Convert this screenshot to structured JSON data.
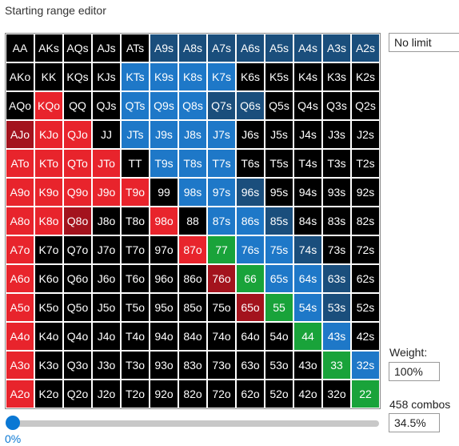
{
  "title": "Starting range editor",
  "limit_select": {
    "value": "No limit"
  },
  "weight": {
    "label": "Weight:",
    "value": "100%"
  },
  "combos": {
    "label": "458 combos",
    "percent": "34.5%"
  },
  "slider": {
    "value_label": "0%",
    "value": 0
  },
  "colors": {
    "black": "#000000",
    "blue": "#1e78c8",
    "navy": "#1a4e7c",
    "red": "#e8242c",
    "darkred": "#a3131d",
    "green": "#19a33a"
  },
  "grid": [
    [
      [
        "AA",
        "black"
      ],
      [
        "AKs",
        "black"
      ],
      [
        "AQs",
        "black"
      ],
      [
        "AJs",
        "black"
      ],
      [
        "ATs",
        "black"
      ],
      [
        "A9s",
        "navy"
      ],
      [
        "A8s",
        "navy"
      ],
      [
        "A7s",
        "navy"
      ],
      [
        "A6s",
        "navy"
      ],
      [
        "A5s",
        "navy"
      ],
      [
        "A4s",
        "navy"
      ],
      [
        "A3s",
        "navy"
      ],
      [
        "A2s",
        "navy"
      ]
    ],
    [
      [
        "AKo",
        "black"
      ],
      [
        "KK",
        "black"
      ],
      [
        "KQs",
        "black"
      ],
      [
        "KJs",
        "black"
      ],
      [
        "KTs",
        "blue"
      ],
      [
        "K9s",
        "blue"
      ],
      [
        "K8s",
        "blue"
      ],
      [
        "K7s",
        "blue"
      ],
      [
        "K6s",
        "black"
      ],
      [
        "K5s",
        "black"
      ],
      [
        "K4s",
        "black"
      ],
      [
        "K3s",
        "black"
      ],
      [
        "K2s",
        "black"
      ]
    ],
    [
      [
        "AQo",
        "black"
      ],
      [
        "KQo",
        "red"
      ],
      [
        "QQ",
        "black"
      ],
      [
        "QJs",
        "black"
      ],
      [
        "QTs",
        "blue"
      ],
      [
        "Q9s",
        "blue"
      ],
      [
        "Q8s",
        "blue"
      ],
      [
        "Q7s",
        "navy"
      ],
      [
        "Q6s",
        "navy"
      ],
      [
        "Q5s",
        "black"
      ],
      [
        "Q4s",
        "black"
      ],
      [
        "Q3s",
        "black"
      ],
      [
        "Q2s",
        "black"
      ]
    ],
    [
      [
        "AJo",
        "darkred"
      ],
      [
        "KJo",
        "red"
      ],
      [
        "QJo",
        "red"
      ],
      [
        "JJ",
        "black"
      ],
      [
        "JTs",
        "blue"
      ],
      [
        "J9s",
        "blue"
      ],
      [
        "J8s",
        "blue"
      ],
      [
        "J7s",
        "blue"
      ],
      [
        "J6s",
        "black"
      ],
      [
        "J5s",
        "black"
      ],
      [
        "J4s",
        "black"
      ],
      [
        "J3s",
        "black"
      ],
      [
        "J2s",
        "black"
      ]
    ],
    [
      [
        "ATo",
        "red"
      ],
      [
        "KTo",
        "red"
      ],
      [
        "QTo",
        "red"
      ],
      [
        "JTo",
        "red"
      ],
      [
        "TT",
        "black"
      ],
      [
        "T9s",
        "blue"
      ],
      [
        "T8s",
        "blue"
      ],
      [
        "T7s",
        "blue"
      ],
      [
        "T6s",
        "black"
      ],
      [
        "T5s",
        "black"
      ],
      [
        "T4s",
        "black"
      ],
      [
        "T3s",
        "black"
      ],
      [
        "T2s",
        "black"
      ]
    ],
    [
      [
        "A9o",
        "red"
      ],
      [
        "K9o",
        "red"
      ],
      [
        "Q9o",
        "red"
      ],
      [
        "J9o",
        "red"
      ],
      [
        "T9o",
        "red"
      ],
      [
        "99",
        "black"
      ],
      [
        "98s",
        "blue"
      ],
      [
        "97s",
        "blue"
      ],
      [
        "96s",
        "navy"
      ],
      [
        "95s",
        "black"
      ],
      [
        "94s",
        "black"
      ],
      [
        "93s",
        "black"
      ],
      [
        "92s",
        "black"
      ]
    ],
    [
      [
        "A8o",
        "red"
      ],
      [
        "K8o",
        "red"
      ],
      [
        "Q8o",
        "darkred"
      ],
      [
        "J8o",
        "black"
      ],
      [
        "T8o",
        "black"
      ],
      [
        "98o",
        "red"
      ],
      [
        "88",
        "black"
      ],
      [
        "87s",
        "blue"
      ],
      [
        "86s",
        "blue"
      ],
      [
        "85s",
        "navy"
      ],
      [
        "84s",
        "black"
      ],
      [
        "83s",
        "black"
      ],
      [
        "82s",
        "black"
      ]
    ],
    [
      [
        "A7o",
        "red"
      ],
      [
        "K7o",
        "black"
      ],
      [
        "Q7o",
        "black"
      ],
      [
        "J7o",
        "black"
      ],
      [
        "T7o",
        "black"
      ],
      [
        "97o",
        "black"
      ],
      [
        "87o",
        "red"
      ],
      [
        "77",
        "green"
      ],
      [
        "76s",
        "blue"
      ],
      [
        "75s",
        "blue"
      ],
      [
        "74s",
        "navy"
      ],
      [
        "73s",
        "black"
      ],
      [
        "72s",
        "black"
      ]
    ],
    [
      [
        "A6o",
        "red"
      ],
      [
        "K6o",
        "black"
      ],
      [
        "Q6o",
        "black"
      ],
      [
        "J6o",
        "black"
      ],
      [
        "T6o",
        "black"
      ],
      [
        "96o",
        "black"
      ],
      [
        "86o",
        "black"
      ],
      [
        "76o",
        "darkred"
      ],
      [
        "66",
        "green"
      ],
      [
        "65s",
        "blue"
      ],
      [
        "64s",
        "blue"
      ],
      [
        "63s",
        "navy"
      ],
      [
        "62s",
        "black"
      ]
    ],
    [
      [
        "A5o",
        "red"
      ],
      [
        "K5o",
        "black"
      ],
      [
        "Q5o",
        "black"
      ],
      [
        "J5o",
        "black"
      ],
      [
        "T5o",
        "black"
      ],
      [
        "95o",
        "black"
      ],
      [
        "85o",
        "black"
      ],
      [
        "75o",
        "black"
      ],
      [
        "65o",
        "darkred"
      ],
      [
        "55",
        "green"
      ],
      [
        "54s",
        "blue"
      ],
      [
        "53s",
        "navy"
      ],
      [
        "52s",
        "black"
      ]
    ],
    [
      [
        "A4o",
        "red"
      ],
      [
        "K4o",
        "black"
      ],
      [
        "Q4o",
        "black"
      ],
      [
        "J4o",
        "black"
      ],
      [
        "T4o",
        "black"
      ],
      [
        "94o",
        "black"
      ],
      [
        "84o",
        "black"
      ],
      [
        "74o",
        "black"
      ],
      [
        "64o",
        "black"
      ],
      [
        "54o",
        "black"
      ],
      [
        "44",
        "green"
      ],
      [
        "43s",
        "blue"
      ],
      [
        "42s",
        "black"
      ]
    ],
    [
      [
        "A3o",
        "red"
      ],
      [
        "K3o",
        "black"
      ],
      [
        "Q3o",
        "black"
      ],
      [
        "J3o",
        "black"
      ],
      [
        "T3o",
        "black"
      ],
      [
        "93o",
        "black"
      ],
      [
        "83o",
        "black"
      ],
      [
        "73o",
        "black"
      ],
      [
        "63o",
        "black"
      ],
      [
        "53o",
        "black"
      ],
      [
        "43o",
        "black"
      ],
      [
        "33",
        "green"
      ],
      [
        "32s",
        "blue"
      ]
    ],
    [
      [
        "A2o",
        "red"
      ],
      [
        "K2o",
        "black"
      ],
      [
        "Q2o",
        "black"
      ],
      [
        "J2o",
        "black"
      ],
      [
        "T2o",
        "black"
      ],
      [
        "92o",
        "black"
      ],
      [
        "82o",
        "black"
      ],
      [
        "72o",
        "black"
      ],
      [
        "62o",
        "black"
      ],
      [
        "52o",
        "black"
      ],
      [
        "42o",
        "black"
      ],
      [
        "32o",
        "black"
      ],
      [
        "22",
        "green"
      ]
    ]
  ]
}
